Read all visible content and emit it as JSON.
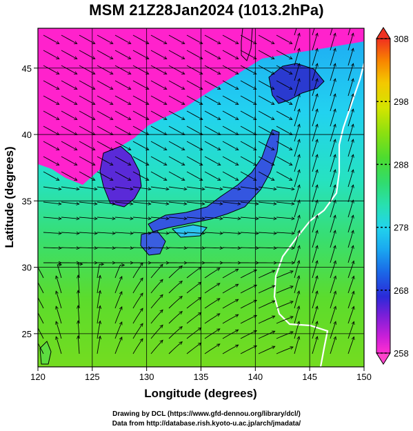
{
  "title": "MSM 21Z28Jan2024 (1013.2hPa)",
  "map": {
    "lon_range": [
      120,
      150
    ],
    "lat_range": [
      22.5,
      48
    ],
    "x_ticks": [
      "120",
      "125",
      "130",
      "135",
      "140",
      "145",
      "150"
    ],
    "y_ticks": [
      "25",
      "30",
      "35",
      "40",
      "45"
    ],
    "x_label": "Longitude (degrees)",
    "y_label": "Latitude  (degrees)",
    "grid": true,
    "field": "temperature",
    "overlay": "streamlines",
    "contour_color": "#ffffff",
    "land_color_cold": "#ff22cc"
  },
  "colorbar": {
    "labels": [
      "308",
      "298",
      "288",
      "278",
      "268",
      "258"
    ],
    "min": 258,
    "max": 308,
    "top_arrow_color": "#ee3322",
    "bottom_arrow_color": "#ff44cc"
  },
  "credits": {
    "line1": "Drawing by DCL (https://www.gfd-dennou.org/library/dcl/)",
    "line2": "Data from http://database.rish.kyoto-u.ac.jp/arch/jmadata/"
  }
}
